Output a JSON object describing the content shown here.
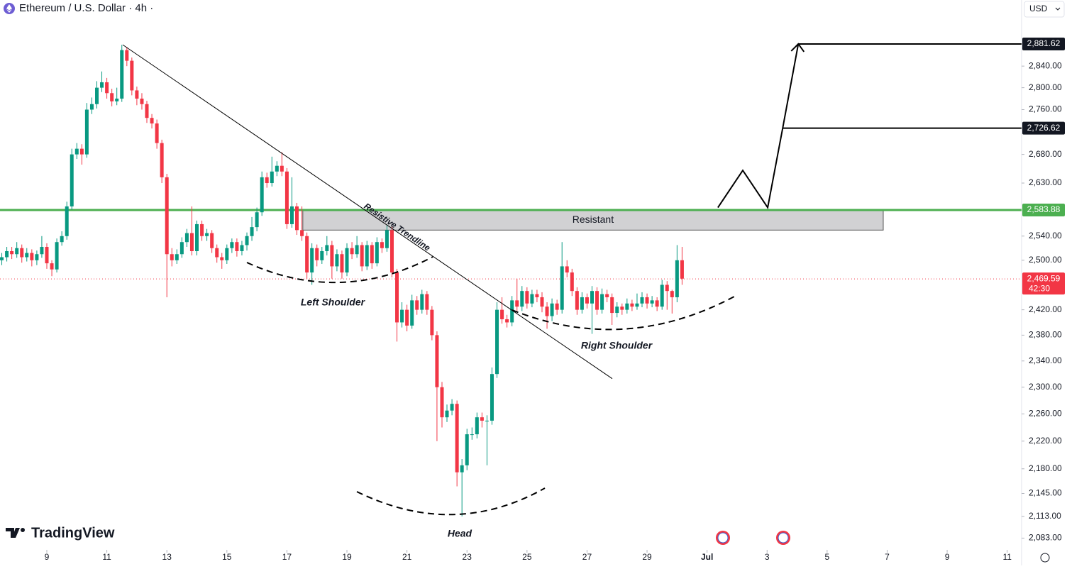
{
  "chart_data": {
    "type": "candlestick",
    "title": "Ethereum / U.S. Dollar · 4h ·",
    "currency": "USD",
    "watermark": "TradingView",
    "up_color": "#089981",
    "down_color": "#f23645",
    "log": true,
    "grid": false,
    "xlim": [
      7.44,
      41.48
    ],
    "xticks": [
      9,
      11,
      13,
      15,
      17,
      19,
      21,
      23,
      25,
      27,
      29,
      {
        "value": 31,
        "label": "Jul"
      },
      {
        "value": 33,
        "label": "3"
      },
      {
        "value": 35,
        "label": "5"
      },
      {
        "value": 37,
        "label": "7"
      },
      {
        "value": 39,
        "label": "9"
      },
      {
        "value": 41,
        "label": "11"
      }
    ],
    "ylim": [
      2067,
      2966
    ],
    "yticks": [
      {
        "value": 2083,
        "label": "2,083.00"
      },
      {
        "value": 2113,
        "label": "2,113.00"
      },
      {
        "value": 2145,
        "label": "2,145.00"
      },
      {
        "value": 2180,
        "label": "2,180.00"
      },
      {
        "value": 2220,
        "label": "2,220.00"
      },
      {
        "value": 2260,
        "label": "2,260.00"
      },
      {
        "value": 2300,
        "label": "2,300.00"
      },
      {
        "value": 2340,
        "label": "2,340.00"
      },
      {
        "value": 2380,
        "label": "2,380.00"
      },
      {
        "value": 2420,
        "label": "2,420.00"
      },
      {
        "value": 2500,
        "label": "2,500.00"
      },
      {
        "value": 2540,
        "label": "2,540.00"
      },
      {
        "value": 2630,
        "label": "2,630.00"
      },
      {
        "value": 2680,
        "label": "2,680.00"
      },
      {
        "value": 2760,
        "label": "2,760.00"
      },
      {
        "value": 2800,
        "label": "2,800.00"
      },
      {
        "value": 2840,
        "label": "2,840.00"
      }
    ],
    "x": [
      7.5,
      7.667,
      7.833,
      8,
      8.167,
      8.333,
      8.5,
      8.667,
      8.833,
      9,
      9.167,
      9.333,
      9.5,
      9.667,
      9.833,
      10,
      10.167,
      10.333,
      10.5,
      10.667,
      10.833,
      11,
      11.167,
      11.333,
      11.5,
      11.667,
      11.833,
      12,
      12.167,
      12.333,
      12.5,
      12.667,
      12.833,
      13,
      13.167,
      13.333,
      13.5,
      13.667,
      13.833,
      14,
      14.167,
      14.333,
      14.5,
      14.667,
      14.833,
      15,
      15.167,
      15.333,
      15.5,
      15.667,
      15.833,
      16,
      16.167,
      16.333,
      16.5,
      16.667,
      16.833,
      17,
      17.167,
      17.333,
      17.5,
      17.667,
      17.833,
      18,
      18.167,
      18.333,
      18.5,
      18.667,
      18.833,
      19,
      19.167,
      19.333,
      19.5,
      19.667,
      19.833,
      20,
      20.167,
      20.333,
      20.5,
      20.667,
      20.833,
      21,
      21.167,
      21.333,
      21.5,
      21.667,
      21.833,
      22,
      22.167,
      22.333,
      22.5,
      22.667,
      22.833,
      23,
      23.167,
      23.333,
      23.5,
      23.667,
      23.833,
      24,
      24.167,
      24.333,
      24.5,
      24.667,
      24.833,
      25,
      25.167,
      25.333,
      25.5,
      25.667,
      25.833,
      26,
      26.167,
      26.333,
      26.5,
      26.667,
      26.833,
      27,
      27.167,
      27.333,
      27.5,
      27.667,
      27.833,
      28,
      28.167,
      28.333,
      28.5,
      28.667,
      28.833,
      29,
      29.167,
      29.333,
      29.5,
      29.667,
      29.833,
      30,
      30.167
    ],
    "open": [
      2500,
      2505,
      2515,
      2510,
      2520,
      2505,
      2512,
      2500,
      2510,
      2522,
      2495,
      2485,
      2530,
      2540,
      2590,
      2680,
      2690,
      2680,
      2760,
      2770,
      2800,
      2810,
      2790,
      2775,
      2780,
      2870,
      2850,
      2795,
      2780,
      2770,
      2745,
      2735,
      2700,
      2640,
      2510,
      2500,
      2510,
      2530,
      2545,
      2515,
      2560,
      2540,
      2545,
      2520,
      2505,
      2500,
      2520,
      2530,
      2515,
      2525,
      2540,
      2555,
      2580,
      2640,
      2630,
      2650,
      2660,
      2650,
      2560,
      2590,
      2550,
      2540,
      2480,
      2520,
      2500,
      2515,
      2525,
      2490,
      2510,
      2480,
      2520,
      2510,
      2525,
      2490,
      2525,
      2495,
      2530,
      2520,
      2550,
      2480,
      2400,
      2420,
      2395,
      2435,
      2420,
      2445,
      2420,
      2380,
      2300,
      2255,
      2265,
      2275,
      2175,
      2185,
      2230,
      2230,
      2255,
      2250,
      2250,
      2320,
      2420,
      2405,
      2400,
      2435,
      2425,
      2450,
      2430,
      2445,
      2440,
      2425,
      2410,
      2430,
      2420,
      2490,
      2480,
      2450,
      2420,
      2440,
      2430,
      2450,
      2420,
      2445,
      2440,
      2415,
      2425,
      2420,
      2430,
      2425,
      2430,
      2440,
      2430,
      2435,
      2425,
      2460,
      2450,
      2440,
      2500
    ],
    "high": [
      2512,
      2522,
      2522,
      2530,
      2526,
      2520,
      2518,
      2516,
      2540,
      2528,
      2500,
      2536,
      2548,
      2598,
      2690,
      2700,
      2698,
      2772,
      2782,
      2812,
      2830,
      2818,
      2798,
      2800,
      2880,
      2876,
      2856,
      2802,
      2790,
      2776,
      2752,
      2742,
      2706,
      2646,
      2520,
      2518,
      2538,
      2552,
      2590,
      2566,
      2566,
      2552,
      2550,
      2526,
      2512,
      2526,
      2536,
      2536,
      2532,
      2546,
      2572,
      2588,
      2650,
      2648,
      2676,
      2668,
      2684,
      2656,
      2640,
      2596,
      2590,
      2546,
      2528,
      2526,
      2522,
      2540,
      2532,
      2518,
      2516,
      2528,
      2530,
      2540,
      2530,
      2532,
      2530,
      2538,
      2536,
      2558,
      2556,
      2486,
      2432,
      2428,
      2444,
      2442,
      2452,
      2450,
      2426,
      2386,
      2308,
      2274,
      2282,
      2280,
      2194,
      2238,
      2240,
      2262,
      2262,
      2258,
      2330,
      2432,
      2440,
      2412,
      2442,
      2470,
      2458,
      2456,
      2452,
      2452,
      2448,
      2432,
      2438,
      2436,
      2530,
      2500,
      2486,
      2456,
      2448,
      2446,
      2458,
      2456,
      2454,
      2452,
      2446,
      2432,
      2430,
      2438,
      2436,
      2446,
      2448,
      2446,
      2442,
      2440,
      2468,
      2466,
      2452,
      2525,
      2522
    ],
    "low": [
      2492,
      2498,
      2502,
      2504,
      2496,
      2498,
      2490,
      2492,
      2504,
      2486,
      2474,
      2480,
      2524,
      2534,
      2584,
      2672,
      2662,
      2674,
      2752,
      2762,
      2792,
      2780,
      2766,
      2768,
      2774,
      2840,
      2786,
      2768,
      2760,
      2736,
      2726,
      2690,
      2630,
      2440,
      2490,
      2494,
      2504,
      2522,
      2508,
      2508,
      2532,
      2532,
      2512,
      2496,
      2486,
      2494,
      2512,
      2506,
      2508,
      2516,
      2532,
      2548,
      2574,
      2622,
      2624,
      2642,
      2642,
      2552,
      2554,
      2542,
      2532,
      2470,
      2460,
      2490,
      2494,
      2508,
      2470,
      2482,
      2470,
      2474,
      2502,
      2504,
      2482,
      2484,
      2486,
      2490,
      2512,
      2514,
      2472,
      2370,
      2392,
      2386,
      2390,
      2412,
      2414,
      2412,
      2372,
      2220,
      2240,
      2248,
      2258,
      2155,
      2113,
      2178,
      2222,
      2224,
      2240,
      2185,
      2244,
      2314,
      2398,
      2392,
      2394,
      2418,
      2418,
      2422,
      2424,
      2432,
      2416,
      2390,
      2402,
      2412,
      2414,
      2472,
      2442,
      2412,
      2414,
      2422,
      2382,
      2412,
      2414,
      2432,
      2396,
      2408,
      2412,
      2414,
      2418,
      2420,
      2424,
      2422,
      2424,
      2418,
      2420,
      2420,
      2414,
      2432,
      2460
    ],
    "close": [
      2505,
      2515,
      2510,
      2520,
      2505,
      2512,
      2500,
      2510,
      2522,
      2495,
      2485,
      2530,
      2540,
      2590,
      2680,
      2690,
      2680,
      2760,
      2770,
      2800,
      2810,
      2790,
      2775,
      2780,
      2870,
      2850,
      2795,
      2780,
      2770,
      2745,
      2735,
      2700,
      2640,
      2510,
      2500,
      2510,
      2530,
      2545,
      2515,
      2560,
      2540,
      2545,
      2520,
      2505,
      2500,
      2520,
      2530,
      2515,
      2525,
      2540,
      2555,
      2580,
      2640,
      2630,
      2650,
      2660,
      2650,
      2560,
      2590,
      2550,
      2540,
      2480,
      2520,
      2500,
      2515,
      2525,
      2490,
      2510,
      2480,
      2520,
      2510,
      2525,
      2490,
      2525,
      2495,
      2530,
      2520,
      2550,
      2480,
      2400,
      2420,
      2395,
      2435,
      2420,
      2445,
      2420,
      2380,
      2300,
      2255,
      2265,
      2275,
      2175,
      2185,
      2230,
      2230,
      2255,
      2250,
      2250,
      2320,
      2420,
      2405,
      2400,
      2435,
      2425,
      2450,
      2430,
      2445,
      2440,
      2425,
      2410,
      2430,
      2420,
      2490,
      2480,
      2450,
      2420,
      2440,
      2430,
      2450,
      2420,
      2445,
      2440,
      2415,
      2425,
      2420,
      2430,
      2425,
      2430,
      2440,
      2430,
      2435,
      2425,
      2460,
      2450,
      2440,
      2500,
      2470
    ],
    "resistance": {
      "value": 2583.88,
      "label": "2,583.88",
      "color": "#4caf50"
    },
    "zone": {
      "label": "Resistant",
      "x": [
        17.53,
        36.87
      ],
      "y": [
        2550,
        2583.88
      ]
    },
    "trendline": {
      "label": "Resistive Trendline",
      "x": [
        11.53,
        27.84
      ],
      "y": [
        2880,
        2313
      ]
    },
    "projection": {
      "x": [
        31.36,
        32.19,
        33.02,
        33.52,
        34.04
      ],
      "y": [
        2588,
        2652,
        2588,
        2726.62,
        2881.62
      ]
    },
    "levels": [
      {
        "value": 2881.62,
        "label": "2,881.62"
      },
      {
        "value": 2726.62,
        "label": "2,726.62"
      }
    ],
    "last_price": {
      "value": 2469.59,
      "label": "2,469.59",
      "countdown": "42:30"
    },
    "patterns": [
      "Left Shoulder",
      "Head",
      "Right Shoulder"
    ]
  }
}
